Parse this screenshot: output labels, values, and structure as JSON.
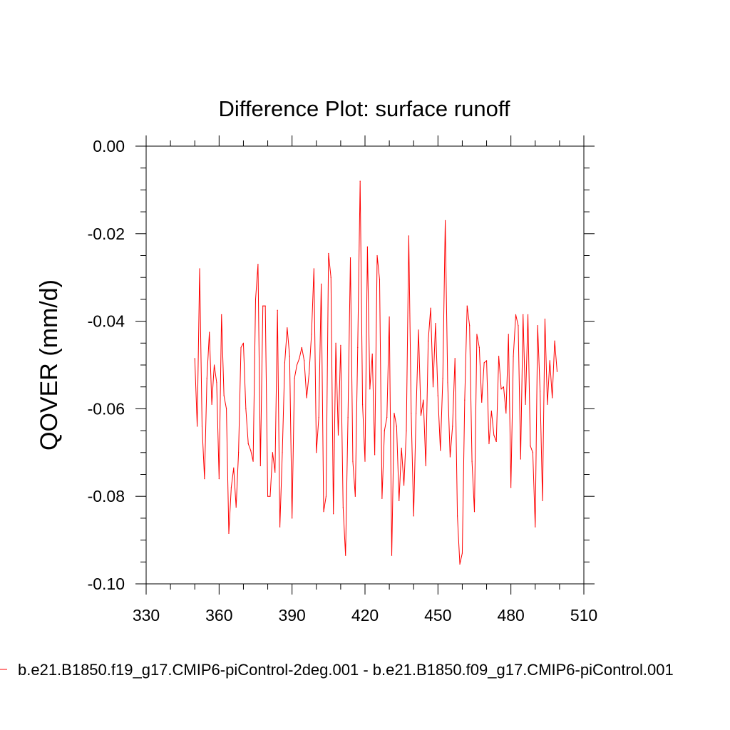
{
  "chart_data": {
    "type": "line",
    "title": "Difference Plot: surface runoff",
    "xlabel": "",
    "ylabel": "QOVER  (mm/d)",
    "xlim": [
      330,
      510
    ],
    "ylim": [
      -0.1,
      0.0
    ],
    "x_ticks": [
      330,
      360,
      390,
      420,
      450,
      480,
      510
    ],
    "x_tick_labels": [
      "330",
      "360",
      "390",
      "420",
      "450",
      "480",
      "510"
    ],
    "y_ticks": [
      0.0,
      -0.02,
      -0.04,
      -0.06,
      -0.08,
      -0.1
    ],
    "y_tick_labels": [
      "0.00",
      "-0.02",
      "-0.04",
      "-0.06",
      "-0.08",
      "-0.10"
    ],
    "grid": false,
    "legend_position": "bottom",
    "series": [
      {
        "name": "b.e21.B1850.f19_g17.CMIP6-piControl-2deg.001 - b.e21.B1850.f09_g17.CMIP6-piControl.001",
        "color": "#ff0000",
        "x_start": 350,
        "x_step": 1,
        "values": [
          -0.0485,
          -0.064,
          -0.028,
          -0.064,
          -0.076,
          -0.053,
          -0.0425,
          -0.059,
          -0.05,
          -0.054,
          -0.076,
          -0.0385,
          -0.057,
          -0.06,
          -0.0885,
          -0.078,
          -0.0735,
          -0.0825,
          -0.07,
          -0.046,
          -0.045,
          -0.06,
          -0.068,
          -0.0695,
          -0.072,
          -0.035,
          -0.027,
          -0.073,
          -0.0365,
          -0.0365,
          -0.08,
          -0.08,
          -0.07,
          -0.0745,
          -0.0375,
          -0.087,
          -0.07,
          -0.0495,
          -0.0415,
          -0.048,
          -0.085,
          -0.053,
          -0.05,
          -0.0485,
          -0.046,
          -0.049,
          -0.0575,
          -0.052,
          -0.043,
          -0.028,
          -0.07,
          -0.062,
          -0.0315,
          -0.0835,
          -0.08,
          -0.0245,
          -0.03,
          -0.084,
          -0.045,
          -0.066,
          -0.0455,
          -0.0825,
          -0.0935,
          -0.062,
          -0.0255,
          -0.072,
          -0.08,
          -0.046,
          -0.008,
          -0.059,
          -0.072,
          -0.023,
          -0.0555,
          -0.0475,
          -0.0705,
          -0.025,
          -0.0305,
          -0.0805,
          -0.065,
          -0.062,
          -0.039,
          -0.0935,
          -0.061,
          -0.064,
          -0.081,
          -0.069,
          -0.0775,
          -0.065,
          -0.0205,
          -0.061,
          -0.0845,
          -0.061,
          -0.042,
          -0.0615,
          -0.058,
          -0.073,
          -0.0445,
          -0.037,
          -0.055,
          -0.0405,
          -0.057,
          -0.0695,
          -0.053,
          -0.017,
          -0.054,
          -0.071,
          -0.064,
          -0.0485,
          -0.0845,
          -0.0955,
          -0.093,
          -0.058,
          -0.0365,
          -0.041,
          -0.072,
          -0.0835,
          -0.043,
          -0.046,
          -0.0585,
          -0.0495,
          -0.049,
          -0.068,
          -0.0605,
          -0.066,
          -0.0675,
          -0.048,
          -0.0555,
          -0.055,
          -0.061,
          -0.043,
          -0.078,
          -0.048,
          -0.0385,
          -0.041,
          -0.0715,
          -0.0385,
          -0.059,
          -0.0385,
          -0.0685,
          -0.07,
          -0.087,
          -0.041,
          -0.056,
          -0.081,
          -0.0395,
          -0.059,
          -0.049,
          -0.0575,
          -0.0445,
          -0.0515
        ]
      }
    ]
  }
}
